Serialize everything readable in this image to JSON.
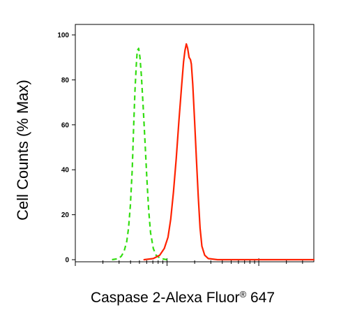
{
  "chart_data": {
    "type": "line",
    "title": "",
    "xlabel": "Caspase 2-Alexa Fluor",
    "xlabel_registered": "®",
    "xlabel_suffix": " 647",
    "ylabel": "Cell Counts (% Max)",
    "x_scale": "log",
    "x_tick_labels_visible": false,
    "ylim": [
      0,
      100
    ],
    "y_ticks": [
      "0",
      "20",
      "40",
      "60",
      "80",
      "100"
    ],
    "grid": false,
    "legend": "none",
    "series": [
      {
        "color": "#33dd11",
        "style": "dashed",
        "points": [
          [
            0.4,
            0
          ],
          [
            0.47,
            0.5
          ],
          [
            0.5,
            1.5
          ],
          [
            0.53,
            3.5
          ],
          [
            0.56,
            8
          ],
          [
            0.58,
            14
          ],
          [
            0.6,
            24
          ],
          [
            0.62,
            40
          ],
          [
            0.635,
            58
          ],
          [
            0.65,
            75
          ],
          [
            0.665,
            87
          ],
          [
            0.675,
            93
          ],
          [
            0.69,
            94
          ],
          [
            0.705,
            90
          ],
          [
            0.72,
            82
          ],
          [
            0.74,
            68
          ],
          [
            0.76,
            52
          ],
          [
            0.78,
            36
          ],
          [
            0.8,
            22
          ],
          [
            0.82,
            12
          ],
          [
            0.85,
            5
          ],
          [
            0.88,
            2
          ],
          [
            0.93,
            0.5
          ],
          [
            1.0,
            0
          ]
        ]
      },
      {
        "color": "#ff2200",
        "style": "solid",
        "points": [
          [
            0.75,
            0
          ],
          [
            0.85,
            0.5
          ],
          [
            0.92,
            2
          ],
          [
            0.97,
            5
          ],
          [
            1.01,
            10
          ],
          [
            1.04,
            18
          ],
          [
            1.07,
            30
          ],
          [
            1.1,
            45
          ],
          [
            1.13,
            62
          ],
          [
            1.16,
            78
          ],
          [
            1.18,
            88
          ],
          [
            1.195,
            93
          ],
          [
            1.21,
            96
          ],
          [
            1.225,
            94
          ],
          [
            1.24,
            90
          ],
          [
            1.255,
            89
          ],
          [
            1.265,
            87
          ],
          [
            1.28,
            78
          ],
          [
            1.3,
            62
          ],
          [
            1.32,
            45
          ],
          [
            1.34,
            28
          ],
          [
            1.36,
            14
          ],
          [
            1.38,
            6
          ],
          [
            1.41,
            2
          ],
          [
            1.45,
            0.5
          ],
          [
            1.55,
            0
          ],
          [
            2.6,
            0
          ]
        ]
      }
    ]
  }
}
